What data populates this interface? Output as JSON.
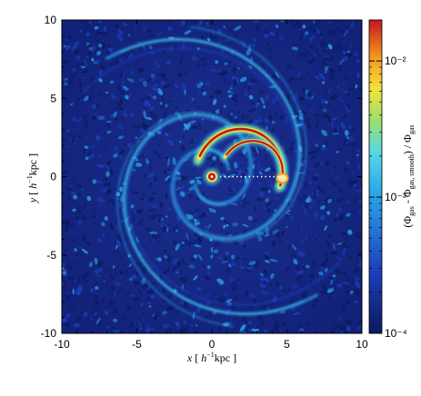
{
  "chart_data": {
    "type": "heatmap",
    "xlabel": "x [ h⁻¹kpc ]",
    "ylabel": "y [ h⁻¹kpc ]",
    "xlim": [
      -10,
      10
    ],
    "ylim": [
      -10,
      10
    ],
    "xticks": [
      "-10",
      "-5",
      "0",
      "5",
      "10"
    ],
    "yticks": [
      "-10",
      "-5",
      "0",
      "5",
      "10"
    ],
    "colorbar": {
      "label": "(Φgas - Φgas, smooth) / Φgas",
      "scale": "log",
      "range": [
        0.0001,
        0.02
      ],
      "ticks": [
        {
          "value": 0.01,
          "label": "10⁻²"
        },
        {
          "value": 0.001,
          "label": "10⁻³"
        },
        {
          "value": 0.0001,
          "label": "10⁻⁴"
        }
      ],
      "colormap": [
        "#0b1a5c",
        "#1d3fbf",
        "#2aa7e8",
        "#57d9e6",
        "#9be06a",
        "#f2e23b",
        "#f59a1f",
        "#c4161c"
      ]
    },
    "features": {
      "spiral_arms": 2,
      "peak_arc_center": [
        4.7,
        0
      ],
      "dotted_line": {
        "from": [
          0,
          0
        ],
        "to": [
          4.7,
          0
        ]
      },
      "center_source": [
        0,
        0
      ]
    }
  }
}
